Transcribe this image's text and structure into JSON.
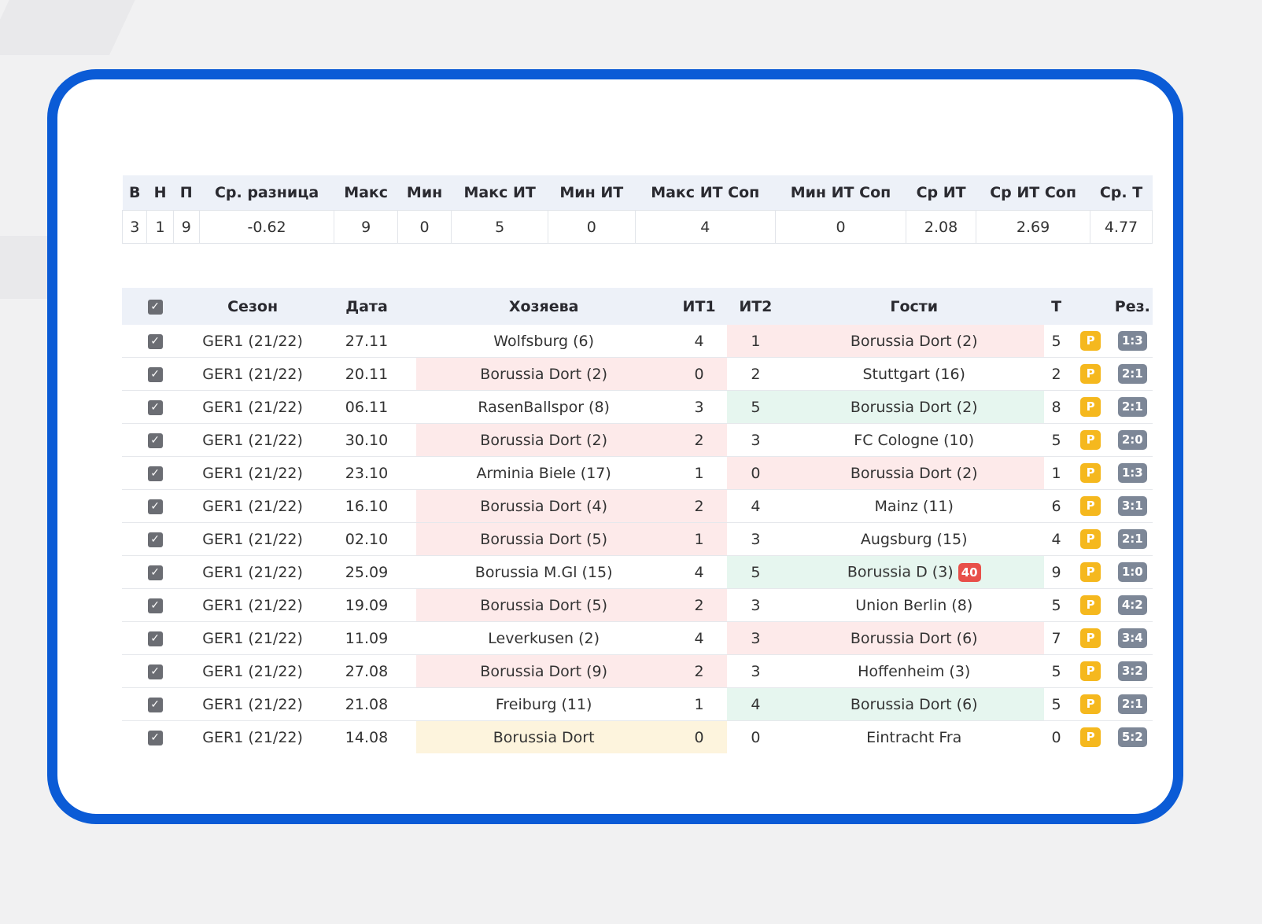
{
  "summary": {
    "headers": [
      "В",
      "Н",
      "П",
      "Ср. разница",
      "Макс",
      "Мин",
      "Макс ИТ",
      "Мин ИТ",
      "Макс ИТ Соп",
      "Мин ИТ Соп",
      "Ср ИТ",
      "Ср ИТ Соп",
      "Ср. Т"
    ],
    "values": [
      "3",
      "1",
      "9",
      "-0.62",
      "9",
      "0",
      "5",
      "0",
      "4",
      "0",
      "2.08",
      "2.69",
      "4.77"
    ]
  },
  "games": {
    "headers": {
      "check": "✓",
      "season": "Сезон",
      "date": "Дата",
      "home": "Хозяева",
      "it1": "ИТ1",
      "it2": "ИТ2",
      "away": "Гости",
      "total": "Т",
      "result": "Рез."
    },
    "badge_p_label": "P",
    "colors": {
      "loss": "#fdeaea",
      "win": "#e6f6ef",
      "draw": "#fdf4dd",
      "badge_p": "#f5b81e",
      "badge_result": "#7d8797",
      "badge_red": "#e8504a",
      "frame": "#0b5bd6"
    },
    "rows": [
      {
        "season": "GER1 (21/22)",
        "date": "27.11",
        "home": "Wolfsburg (6)",
        "it1": "4",
        "it2": "1",
        "away": "Borussia Dort (2)",
        "total": "5",
        "result": "1:3",
        "hl_side": "away",
        "hl": "loss"
      },
      {
        "season": "GER1 (21/22)",
        "date": "20.11",
        "home": "Borussia Dort (2)",
        "it1": "0",
        "it2": "2",
        "away": "Stuttgart (16)",
        "total": "2",
        "result": "2:1",
        "hl_side": "home",
        "hl": "loss"
      },
      {
        "season": "GER1 (21/22)",
        "date": "06.11",
        "home": "RasenBallspor (8)",
        "it1": "3",
        "it2": "5",
        "away": "Borussia Dort (2)",
        "total": "8",
        "result": "2:1",
        "hl_side": "away",
        "hl": "win"
      },
      {
        "season": "GER1 (21/22)",
        "date": "30.10",
        "home": "Borussia Dort (2)",
        "it1": "2",
        "it2": "3",
        "away": "FC Cologne (10)",
        "total": "5",
        "result": "2:0",
        "hl_side": "home",
        "hl": "loss"
      },
      {
        "season": "GER1 (21/22)",
        "date": "23.10",
        "home": "Arminia Biele (17)",
        "it1": "1",
        "it2": "0",
        "away": "Borussia Dort (2)",
        "total": "1",
        "result": "1:3",
        "hl_side": "away",
        "hl": "loss"
      },
      {
        "season": "GER1 (21/22)",
        "date": "16.10",
        "home": "Borussia Dort (4)",
        "it1": "2",
        "it2": "4",
        "away": "Mainz (11)",
        "total": "6",
        "result": "3:1",
        "hl_side": "home",
        "hl": "loss"
      },
      {
        "season": "GER1 (21/22)",
        "date": "02.10",
        "home": "Borussia Dort (5)",
        "it1": "1",
        "it2": "3",
        "away": "Augsburg (15)",
        "total": "4",
        "result": "2:1",
        "hl_side": "home",
        "hl": "loss"
      },
      {
        "season": "GER1 (21/22)",
        "date": "25.09",
        "home": "Borussia M.Gl (15)",
        "it1": "4",
        "it2": "5",
        "away": "Borussia D (3)",
        "away_badge": "40",
        "total": "9",
        "result": "1:0",
        "hl_side": "away",
        "hl": "win"
      },
      {
        "season": "GER1 (21/22)",
        "date": "19.09",
        "home": "Borussia Dort (5)",
        "it1": "2",
        "it2": "3",
        "away": "Union Berlin (8)",
        "total": "5",
        "result": "4:2",
        "hl_side": "home",
        "hl": "loss"
      },
      {
        "season": "GER1 (21/22)",
        "date": "11.09",
        "home": "Leverkusen (2)",
        "it1": "4",
        "it2": "3",
        "away": "Borussia Dort (6)",
        "total": "7",
        "result": "3:4",
        "hl_side": "away",
        "hl": "loss"
      },
      {
        "season": "GER1 (21/22)",
        "date": "27.08",
        "home": "Borussia Dort (9)",
        "it1": "2",
        "it2": "3",
        "away": "Hoffenheim (3)",
        "total": "5",
        "result": "3:2",
        "hl_side": "home",
        "hl": "loss"
      },
      {
        "season": "GER1 (21/22)",
        "date": "21.08",
        "home": "Freiburg (11)",
        "it1": "1",
        "it2": "4",
        "away": "Borussia Dort (6)",
        "total": "5",
        "result": "2:1",
        "hl_side": "away",
        "hl": "win"
      },
      {
        "season": "GER1 (21/22)",
        "date": "14.08",
        "home": "Borussia Dort",
        "it1": "0",
        "it2": "0",
        "away": "Eintracht Fra",
        "total": "0",
        "result": "5:2",
        "hl_side": "home",
        "hl": "draw"
      }
    ]
  }
}
